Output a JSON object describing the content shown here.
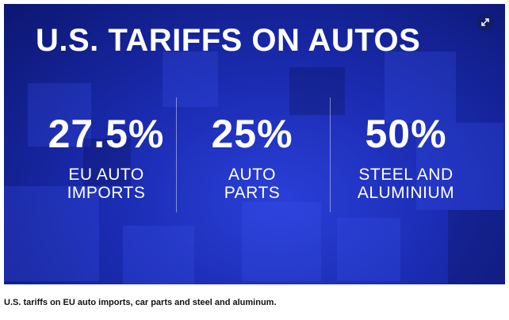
{
  "header": {
    "title": "U.S. TARIFFS ON AUTOS"
  },
  "stats": [
    {
      "value": "27.5%",
      "label": [
        "EU AUTO",
        "IMPORTS"
      ]
    },
    {
      "value": "25%",
      "label": [
        "AUTO",
        "PARTS"
      ]
    },
    {
      "value": "50%",
      "label": [
        "STEEL AND",
        "ALUMINIUM"
      ]
    }
  ],
  "caption": "U.S. tariffs on EU auto imports, car parts and steel and aluminum."
}
